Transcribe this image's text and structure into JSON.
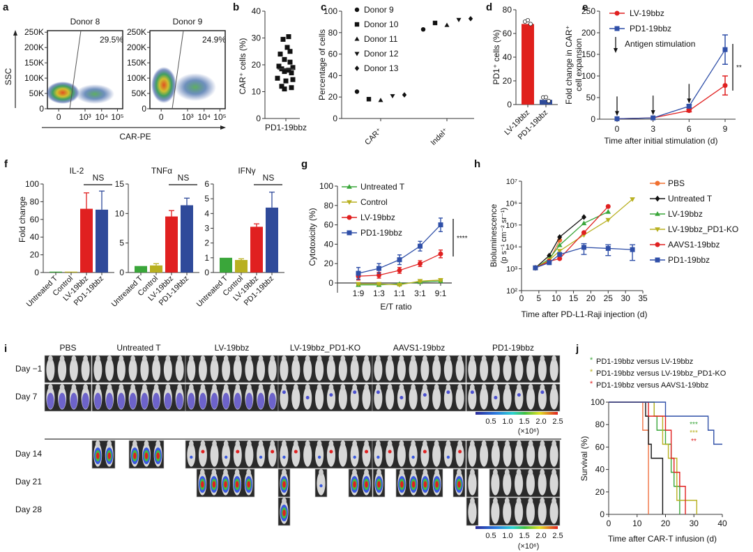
{
  "panels": {
    "a": {
      "label": "a",
      "xlabel": "CAR-PE",
      "ylabel": "SSC",
      "yticks": [
        "0",
        "50K",
        "100K",
        "150K",
        "200K",
        "250K"
      ],
      "xticks": [
        "0",
        "10³",
        "10⁴",
        "10⁵"
      ],
      "plots": [
        {
          "title": "Donor 8",
          "gate_pct": "29.5%"
        },
        {
          "title": "Donor 9",
          "gate_pct": "24.9%"
        }
      ]
    },
    "b": {
      "label": "b",
      "ylabel": "CAR⁺ cells (%)",
      "xlabel": "PD1-19bbz",
      "yticks": [
        "0",
        "10",
        "20",
        "30",
        "40"
      ]
    },
    "c": {
      "label": "c",
      "ylabel": "Percentage of cells",
      "yticks": [
        "0",
        "20",
        "40",
        "60",
        "80",
        "100"
      ],
      "xticks": [
        "CAR⁺",
        "Indel⁺"
      ]
    },
    "d": {
      "label": "d",
      "ylabel": "PD1⁺ cells (%)",
      "yticks": [
        "0",
        "20",
        "40",
        "60",
        "80"
      ],
      "xticks": [
        "LV-19bbz",
        "PD1-19bbz"
      ]
    },
    "e": {
      "label": "e",
      "ylabel1": "Fold change in CAR⁺",
      "ylabel2": "cell expansion",
      "xlabel": "Time after initial stimulation (d)",
      "yticks": [
        "0",
        "50",
        "100",
        "150",
        "200",
        "250"
      ],
      "xticks": [
        "0",
        "3",
        "6",
        "9"
      ],
      "annotation": "Antigen stimulation",
      "sig": "**"
    },
    "f": {
      "label": "f",
      "ylabel": "Fold change",
      "sig": "NS",
      "xticks": [
        "Untreated T",
        "Control",
        "LV-19bbz",
        "PD1-19bbz"
      ],
      "subplots": [
        {
          "title": "IL-2",
          "yticks": [
            "0",
            "20",
            "40",
            "60",
            "80",
            "100"
          ]
        },
        {
          "title": "TNFα",
          "yticks": [
            "0",
            "5",
            "10",
            "15"
          ]
        },
        {
          "title": "IFNγ",
          "yticks": [
            "0",
            "1",
            "2",
            "3",
            "4",
            "5",
            "6"
          ]
        }
      ]
    },
    "g": {
      "label": "g",
      "ylabel": "Cytotoxicity (%)",
      "xlabel": "E/T ratio",
      "yticks": [
        "0",
        "20",
        "40",
        "60",
        "80",
        "100"
      ],
      "xticks": [
        "1:9",
        "1:3",
        "1:1",
        "3:1",
        "9:1"
      ],
      "sig": "****"
    },
    "h": {
      "label": "h",
      "ylabel1": "Bioluminescence",
      "ylabel2": "(p s⁻¹ cm⁻² sr⁻¹)",
      "xlabel": "Time after PD-L1-Raji injection (d)",
      "yticks": [
        "10²",
        "10³",
        "10⁴",
        "10⁵",
        "10⁶",
        "10⁷"
      ],
      "xticks": [
        "0",
        "5",
        "10",
        "15",
        "20",
        "25",
        "30",
        "35"
      ]
    },
    "i": {
      "label": "i",
      "groups": [
        "PBS",
        "Untreated T",
        "LV-19bbz",
        "LV-19bbz_PD1-KO",
        "AAVS1-19bbz",
        "PD1-19bbz"
      ],
      "days": [
        "Day −1",
        "Day 7",
        "Day 14",
        "Day 21",
        "Day 28"
      ],
      "scale_ticks": [
        "0.5",
        "1.0",
        "1.5",
        "2.0",
        "2.5"
      ],
      "scale_unit": "(×10⁶)"
    },
    "j": {
      "label": "j",
      "ylabel": "Survival (%)",
      "xlabel": "Time after CAR-T infusion (d)",
      "yticks": [
        "0",
        "20",
        "40",
        "60",
        "80",
        "100"
      ],
      "xticks": [
        "0",
        "10",
        "20",
        "30",
        "40"
      ],
      "legend": [
        {
          "text": "PD1-19bbz versus LV-19bbz",
          "color": "#3aa63a",
          "sig": "***"
        },
        {
          "text": "PD1-19bbz versus LV-19bbz_PD1-KO",
          "color": "#b8b020",
          "sig": "***"
        },
        {
          "text": "PD1-19bbz versus AAVS1-19bbz",
          "color": "#e02020",
          "sig": "**"
        }
      ]
    }
  },
  "chart_data": [
    {
      "panel": "b",
      "type": "scatter",
      "title": "",
      "ylabel": "CAR⁺ cells (%)",
      "xlabel": "PD1-19bbz",
      "ylim": [
        0,
        40
      ],
      "values": [
        30.5,
        29.5,
        26.5,
        25,
        24,
        22,
        21,
        19.5,
        19,
        18.5,
        18,
        17.5,
        17,
        15,
        14.5,
        14,
        12,
        11.5,
        11
      ],
      "mean": 18.5
    },
    {
      "panel": "c",
      "type": "scatter",
      "ylabel": "Percentage of cells",
      "ylim": [
        0,
        100
      ],
      "categories": [
        "CAR⁺",
        "Indel⁺"
      ],
      "series": [
        {
          "name": "Donor 9",
          "marker": "circle",
          "values": [
            25,
            83
          ]
        },
        {
          "name": "Donor 10",
          "marker": "square",
          "values": [
            18,
            89
          ]
        },
        {
          "name": "Donor 11",
          "marker": "triangle-up",
          "values": [
            17,
            87
          ]
        },
        {
          "name": "Donor 12",
          "marker": "triangle-down",
          "values": [
            21,
            92
          ]
        },
        {
          "name": "Donor 13",
          "marker": "diamond",
          "values": [
            22,
            93
          ]
        }
      ]
    },
    {
      "panel": "d",
      "type": "bar",
      "ylabel": "PD1⁺ cells (%)",
      "ylim": [
        0,
        80
      ],
      "categories": [
        "LV-19bbz",
        "PD1-19bbz"
      ],
      "values": [
        68,
        4
      ],
      "colors": [
        "#e0201c",
        "#2f4b9a"
      ],
      "points": [
        [
          70,
          70,
          68
        ],
        [
          6,
          5,
          3
        ]
      ]
    },
    {
      "panel": "e",
      "type": "line",
      "ylabel": "Fold change in CAR⁺ cell expansion",
      "xlabel": "Time after initial stimulation (d)",
      "xlim": [
        0,
        9
      ],
      "ylim": [
        0,
        250
      ],
      "x": [
        0,
        3,
        6,
        9
      ],
      "arrows_at": [
        0,
        3,
        6,
        9
      ],
      "series": [
        {
          "name": "LV-19bbz",
          "color": "#e02020",
          "marker": "circle",
          "values": [
            1,
            3,
            20,
            78
          ],
          "err": [
            0,
            0,
            3,
            22
          ]
        },
        {
          "name": "PD1-19bbz",
          "color": "#2f4fa8",
          "marker": "square",
          "values": [
            1,
            3,
            30,
            161
          ],
          "err": [
            0,
            0,
            3,
            34
          ]
        }
      ]
    },
    {
      "panel": "f",
      "type": "bar",
      "ylabel": "Fold change",
      "categories": [
        "Untreated T",
        "Control",
        "LV-19bbz",
        "PD1-19bbz"
      ],
      "colors": [
        "#3aa63a",
        "#b8b020",
        "#e02020",
        "#2f4a9a"
      ],
      "subplots": [
        {
          "title": "IL-2",
          "ylim": [
            0,
            100
          ],
          "values": [
            1,
            1,
            72,
            71
          ],
          "err": [
            0,
            0,
            18,
            21
          ]
        },
        {
          "title": "TNFα",
          "ylim": [
            0,
            15
          ],
          "values": [
            1.1,
            1.2,
            9.5,
            11.4
          ],
          "err": [
            0,
            0.3,
            1.0,
            1.2
          ]
        },
        {
          "title": "IFNγ",
          "ylim": [
            0,
            6
          ],
          "values": [
            1.0,
            0.85,
            3.1,
            4.4
          ],
          "err": [
            0,
            0.08,
            0.2,
            1.05
          ]
        }
      ]
    },
    {
      "panel": "g",
      "type": "line",
      "ylabel": "Cytotoxicity (%)",
      "xlabel": "E/T ratio",
      "ylim": [
        -5,
        100
      ],
      "categories": [
        "1:9",
        "1:3",
        "1:1",
        "3:1",
        "9:1"
      ],
      "series": [
        {
          "name": "Untreated T",
          "color": "#3aa63a",
          "marker": "triangle-up",
          "values": [
            -2,
            -2,
            -1,
            1,
            2
          ],
          "err": [
            1,
            1,
            1,
            1,
            1
          ]
        },
        {
          "name": "Control",
          "color": "#b8b020",
          "marker": "triangle-down",
          "values": [
            -1,
            -1,
            -2,
            2,
            3
          ],
          "err": [
            1,
            1,
            1,
            1,
            1
          ]
        },
        {
          "name": "LV-19bbz",
          "color": "#e02020",
          "marker": "circle",
          "values": [
            7,
            8,
            13,
            20,
            30
          ],
          "err": [
            4,
            3,
            3,
            3,
            4
          ]
        },
        {
          "name": "PD1-19bbz",
          "color": "#2f4fa8",
          "marker": "square",
          "values": [
            10,
            15,
            24,
            38,
            60
          ],
          "err": [
            6,
            5,
            5,
            5,
            7
          ]
        }
      ]
    },
    {
      "panel": "h",
      "type": "line",
      "ylabel": "Bioluminescence (p s⁻¹ cm⁻² sr⁻¹)",
      "xlabel": "Time after PD-L1-Raji injection (d)",
      "yscale": "log",
      "ylim": [
        100,
        10000000
      ],
      "xlim": [
        0,
        35
      ],
      "series": [
        {
          "name": "PBS",
          "color": "#f07030",
          "marker": "circle",
          "x": [
            4,
            8,
            11
          ],
          "values": [
            1100,
            2300,
            20000
          ]
        },
        {
          "name": "Untreated T",
          "color": "#111111",
          "marker": "diamond",
          "x": [
            4,
            8,
            11,
            18
          ],
          "values": [
            1100,
            4000,
            28000,
            230000
          ]
        },
        {
          "name": "LV-19bbz",
          "color": "#3aa63a",
          "marker": "triangle-up",
          "x": [
            4,
            8,
            11,
            18,
            25
          ],
          "values": [
            1100,
            2800,
            12000,
            120000,
            400000
          ]
        },
        {
          "name": "LV-19bbz_PD1-KO",
          "color": "#b8b020",
          "marker": "triangle-down",
          "x": [
            4,
            8,
            11,
            18,
            25,
            32
          ],
          "values": [
            1100,
            2500,
            6500,
            35000,
            170000,
            1500000
          ]
        },
        {
          "name": "AAVS1-19bbz",
          "color": "#e02020",
          "marker": "circle",
          "x": [
            4,
            8,
            11,
            18,
            25
          ],
          "values": [
            1100,
            2200,
            2900,
            45000,
            700000
          ]
        },
        {
          "name": "PD1-19bbz",
          "color": "#2f4fa8",
          "marker": "square",
          "x": [
            4,
            8,
            11,
            18,
            25,
            32
          ],
          "values": [
            1100,
            1900,
            4500,
            9500,
            8500,
            7500
          ]
        }
      ]
    },
    {
      "panel": "j",
      "type": "line",
      "ylabel": "Survival (%)",
      "xlabel": "Time after CAR-T infusion (d)",
      "xlim": [
        0,
        40
      ],
      "ylim": [
        0,
        100
      ],
      "series": [
        {
          "name": "PBS",
          "color": "#f07040",
          "steps": [
            [
              0,
              100
            ],
            [
              12,
              75
            ],
            [
              14,
              0
            ]
          ]
        },
        {
          "name": "Untreated T",
          "color": "#111111",
          "steps": [
            [
              0,
              100
            ],
            [
              13,
              87.5
            ],
            [
              14,
              62.5
            ],
            [
              15,
              50
            ],
            [
              19,
              0
            ]
          ]
        },
        {
          "name": "LV-19bbz",
          "color": "#3aa63a",
          "steps": [
            [
              0,
              100
            ],
            [
              16,
              87.5
            ],
            [
              17,
              75
            ],
            [
              20,
              62.5
            ],
            [
              22,
              37.5
            ],
            [
              23,
              25
            ],
            [
              25,
              0
            ]
          ]
        },
        {
          "name": "LV-19bbz_PD1-KO",
          "color": "#b8b020",
          "steps": [
            [
              0,
              100
            ],
            [
              16,
              87.5
            ],
            [
              19,
              62.5
            ],
            [
              21,
              50
            ],
            [
              24,
              12.5
            ],
            [
              31,
              0
            ]
          ]
        },
        {
          "name": "AAVS1-19bbz",
          "color": "#e02020",
          "steps": [
            [
              0,
              100
            ],
            [
              14,
              87.5
            ],
            [
              20,
              75
            ],
            [
              22,
              50
            ],
            [
              23,
              37.5
            ],
            [
              25,
              25
            ],
            [
              27,
              0
            ]
          ]
        },
        {
          "name": "PD1-19bbz",
          "color": "#2f4fa8",
          "steps": [
            [
              0,
              100
            ],
            [
              20,
              87.5
            ],
            [
              35,
              75
            ],
            [
              37,
              62.5
            ],
            [
              40,
              62.5
            ]
          ]
        }
      ]
    }
  ]
}
